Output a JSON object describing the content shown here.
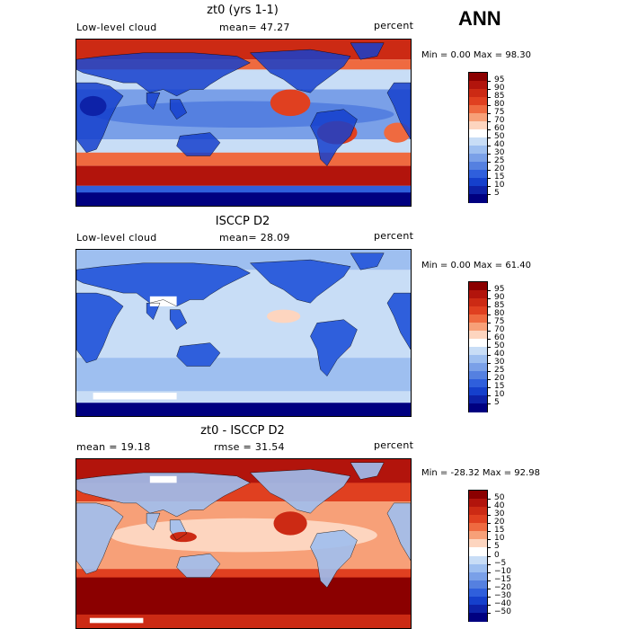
{
  "season": "ANN",
  "panels": [
    {
      "title": "zt0 (yrs 1-1)",
      "left_label": "Low-level cloud",
      "mid_label": "mean=  47.27",
      "right_label": "percent",
      "minmax": "Min =   0.00 Max =  98.30",
      "colorbar_labels": [
        "95",
        "90",
        "85",
        "80",
        "75",
        "70",
        "60",
        "50",
        "40",
        "30",
        "25",
        "20",
        "15",
        "10",
        "5"
      ],
      "colorbar_colors": [
        "#8b0000",
        "#b2140c",
        "#cc2a14",
        "#e04020",
        "#ef6a40",
        "#f7a078",
        "#fdd5bf",
        "#ffffff",
        "#c8ddf6",
        "#9ebff0",
        "#7aa0e8",
        "#5580e0",
        "#2f5fdc",
        "#1540cc",
        "#0d22a8",
        "#000080"
      ],
      "map_type": "model"
    },
    {
      "title": "ISCCP D2",
      "left_label": "Low-level cloud",
      "mid_label": "mean=  28.09",
      "right_label": "percent",
      "minmax": "Min =   0.00 Max =  61.40",
      "colorbar_labels": [
        "95",
        "90",
        "85",
        "80",
        "75",
        "70",
        "60",
        "50",
        "40",
        "30",
        "25",
        "20",
        "15",
        "10",
        "5"
      ],
      "colorbar_colors": [
        "#8b0000",
        "#b2140c",
        "#cc2a14",
        "#e04020",
        "#ef6a40",
        "#f7a078",
        "#fdd5bf",
        "#ffffff",
        "#c8ddf6",
        "#9ebff0",
        "#7aa0e8",
        "#5580e0",
        "#2f5fdc",
        "#1540cc",
        "#0d22a8",
        "#000080"
      ],
      "map_type": "obs"
    },
    {
      "title": "zt0 - ISCCP D2",
      "left_label": "mean =  19.18",
      "mid_label": "rmse =  31.54",
      "right_label": "percent",
      "minmax": "Min = -28.32 Max =  92.98",
      "colorbar_labels": [
        "50",
        "40",
        "30",
        "20",
        "15",
        "10",
        "5",
        "0",
        "−5",
        "−10",
        "−15",
        "−20",
        "−30",
        "−40",
        "−50"
      ],
      "colorbar_colors": [
        "#8b0000",
        "#b2140c",
        "#cc2a14",
        "#e04020",
        "#ef6a40",
        "#f7a078",
        "#fdd5bf",
        "#ffffff",
        "#c8ddf6",
        "#9ebff0",
        "#7aa0e8",
        "#5580e0",
        "#2f5fdc",
        "#1540cc",
        "#0d22a8",
        "#000080"
      ],
      "map_type": "diff"
    }
  ]
}
